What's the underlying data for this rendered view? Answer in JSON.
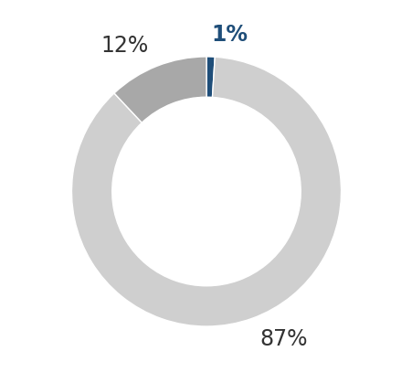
{
  "chart_data": {
    "type": "pie",
    "values": [
      1,
      87,
      12
    ],
    "value_labels": [
      "1%",
      "87%",
      "12%"
    ],
    "colors": [
      "#1f4e79",
      "#cfcfcf",
      "#a8a8a8"
    ],
    "data_labels": true
  }
}
